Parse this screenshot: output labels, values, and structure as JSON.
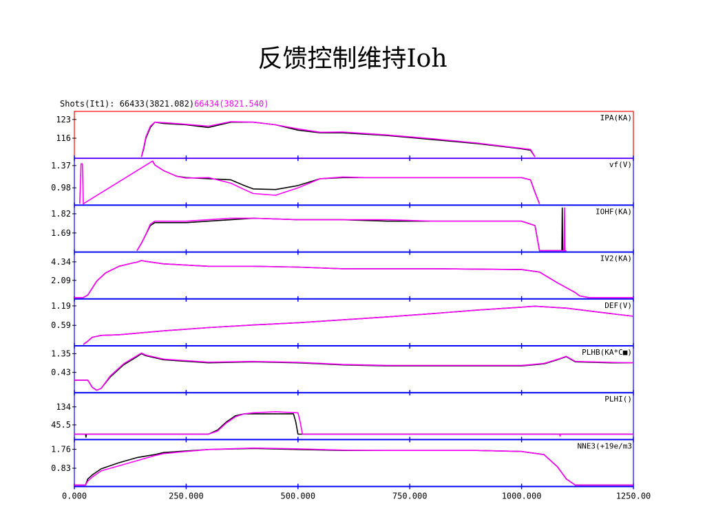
{
  "slide": {
    "title": "反馈控制维持Ioh",
    "shots_label": "Shots(It1): 66433(3821.082)",
    "shots_second": "66434(3821.540)"
  },
  "colors": {
    "shot1": "#000000",
    "shot2": "#ff00ff",
    "frame_first": "#ff0000",
    "frame": "#0000ff",
    "separator_first": "#ff00ff"
  },
  "chart_data": {
    "type": "line",
    "x_ticks": [
      "0.000",
      "250.000",
      "500.000",
      "750.000",
      "1000.000",
      "1250.00"
    ],
    "xlim": [
      0,
      1250
    ],
    "panels": [
      {
        "name": "IPA(KA)",
        "tick_labels": [
          "123",
          "116"
        ],
        "ticks": [
          123,
          116
        ],
        "ylim": [
          109,
          125
        ],
        "series": [
          {
            "x": [
              150,
              155,
              160,
              170,
              180,
              200,
              250,
              300,
              350,
              400,
              450,
              500,
              550,
              600,
              700,
              800,
              900,
              950,
              1000,
              1020,
              1030
            ],
            "y": [
              109,
              112,
              116,
              120,
              122,
              121.5,
              121,
              120,
              122,
              122,
              121,
              119,
              118,
              118,
              117,
              115.5,
              114,
              113,
              112,
              111.5,
              109
            ]
          },
          {
            "x": [
              150,
              155,
              160,
              170,
              180,
              200,
              250,
              300,
              350,
              400,
              450,
              500,
              550,
              600,
              700,
              800,
              900,
              950,
              1000,
              1020,
              1030
            ],
            "y": [
              109,
              112.5,
              116.5,
              120.5,
              122,
              121.8,
              121.2,
              120.5,
              122.2,
              122,
              121,
              119.5,
              118.2,
              118.3,
              117.2,
              115.8,
              114.2,
              113.2,
              112.2,
              111.8,
              109
            ]
          }
        ]
      },
      {
        "name": "vf(V)",
        "tick_labels": [
          "1.37",
          "0.98"
        ],
        "ticks": [
          1.37,
          0.98
        ],
        "ylim": [
          0.7,
          1.45
        ],
        "series": [
          {
            "x": [
              175,
              180,
              200,
              230,
              250,
              300,
              350,
              380,
              400,
              450,
              500,
              550,
              600,
              650,
              700,
              800,
              900,
              1000,
              1020,
              1030,
              1040
            ],
            "y": [
              1.45,
              1.38,
              1.28,
              1.18,
              1.16,
              1.14,
              1.12,
              1.02,
              0.96,
              0.95,
              1.02,
              1.14,
              1.16,
              1.16,
              1.16,
              1.16,
              1.16,
              1.16,
              1.12,
              0.9,
              0.7
            ]
          },
          {
            "x": [
              12,
              15,
              18,
              20,
              175,
              180,
              200,
              230,
              250,
              300,
              350,
              380,
              400,
              450,
              500,
              550,
              600,
              650,
              700,
              800,
              900,
              1000,
              1020,
              1030,
              1040
            ],
            "y": [
              0.7,
              1.4,
              1.4,
              0.7,
              1.45,
              1.38,
              1.28,
              1.18,
              1.15,
              1.16,
              1.06,
              0.95,
              0.88,
              0.85,
              0.98,
              1.14,
              1.17,
              1.16,
              1.16,
              1.16,
              1.16,
              1.16,
              1.12,
              0.9,
              0.7
            ]
          }
        ]
      },
      {
        "name": "IOHF(KA)",
        "tick_labels": [
          "1.82",
          "1.69"
        ],
        "ticks": [
          1.82,
          1.69
        ],
        "ylim": [
          1.57,
          1.86
        ],
        "series": [
          {
            "x": [
              140,
              150,
              160,
              170,
              180,
              250,
              350,
              400,
              500,
              600,
              700,
              800,
              900,
              1000,
              1030,
              1040,
              1060,
              1090,
              1091,
              1092,
              1093,
              1100
            ],
            "y": [
              1.57,
              1.62,
              1.68,
              1.74,
              1.76,
              1.76,
              1.78,
              1.79,
              1.78,
              1.78,
              1.77,
              1.77,
              1.77,
              1.77,
              1.74,
              1.57,
              1.57,
              1.57,
              1.86,
              1.57,
              1.57,
              1.57
            ]
          },
          {
            "x": [
              140,
              150,
              160,
              170,
              180,
              250,
              350,
              400,
              500,
              600,
              700,
              800,
              900,
              1000,
              1030,
              1040,
              1060,
              1095,
              1096,
              1097,
              1100
            ],
            "y": [
              1.57,
              1.62,
              1.68,
              1.75,
              1.77,
              1.77,
              1.79,
              1.79,
              1.78,
              1.78,
              1.78,
              1.77,
              1.77,
              1.77,
              1.74,
              1.57,
              1.57,
              1.57,
              1.86,
              1.57,
              1.57
            ]
          }
        ]
      },
      {
        "name": "IV2(KA)",
        "tick_labels": [
          "4.34",
          "2.09"
        ],
        "ticks": [
          4.34,
          2.09
        ],
        "ylim": [
          0,
          5.2
        ],
        "series": [
          {
            "x": [
              0,
              20,
              30,
              50,
              70,
              100,
              130,
              140,
              150,
              160,
              200,
              300,
              400,
              500,
              600,
              800,
              1000,
              1040,
              1080,
              1100,
              1120,
              1130,
              1150,
              1250
            ],
            "y": [
              0,
              0,
              0.3,
              2,
              3,
              3.8,
              4.2,
              4.3,
              4.5,
              4.4,
              4.1,
              3.8,
              3.8,
              3.7,
              3.5,
              3.5,
              3.4,
              3.1,
              1.8,
              1.2,
              0.6,
              0.2,
              0,
              0
            ]
          },
          {
            "x": [
              0,
              20,
              30,
              50,
              70,
              100,
              130,
              140,
              150,
              160,
              200,
              300,
              400,
              500,
              600,
              800,
              1000,
              1040,
              1080,
              1100,
              1120,
              1130,
              1150,
              1250
            ],
            "y": [
              0,
              0,
              0.3,
              2,
              3,
              3.8,
              4.2,
              4.3,
              4.5,
              4.4,
              4.1,
              3.8,
              3.8,
              3.7,
              3.5,
              3.5,
              3.4,
              3.1,
              1.8,
              1.2,
              0.6,
              0.2,
              0,
              0
            ]
          }
        ]
      },
      {
        "name": "DEF(V)",
        "tick_labels": [
          "1.19",
          "0.59"
        ],
        "ticks": [
          1.19,
          0.59
        ],
        "ylim": [
          0,
          1.32
        ],
        "series": [
          {
            "x": [
              20,
              30,
              40,
              60,
              100,
              200,
              300,
              400,
              500,
              600,
              700,
              800,
              900,
              1000,
              1030,
              1100,
              1200,
              1250
            ],
            "y": [
              0,
              0.1,
              0.22,
              0.28,
              0.3,
              0.42,
              0.52,
              0.6,
              0.67,
              0.76,
              0.85,
              0.95,
              1.06,
              1.15,
              1.18,
              1.12,
              0.95,
              0.87
            ]
          },
          {
            "x": [
              20,
              30,
              40,
              60,
              100,
              200,
              300,
              400,
              500,
              600,
              700,
              800,
              900,
              1000,
              1030,
              1100,
              1200,
              1250
            ],
            "y": [
              0,
              0.1,
              0.22,
              0.28,
              0.3,
              0.42,
              0.52,
              0.6,
              0.67,
              0.76,
              0.85,
              0.95,
              1.06,
              1.15,
              1.18,
              1.12,
              0.95,
              0.87
            ]
          }
        ]
      },
      {
        "name": "PLHB(KA*C■)",
        "tick_labels": [
          "1.35",
          "0.43"
        ],
        "ticks": [
          1.35,
          0.43
        ],
        "ylim": [
          -0.5,
          1.6
        ],
        "series": [
          {
            "x": [
              0,
              30,
              40,
              50,
              60,
              80,
              110,
              140,
              150,
              160,
              200,
              300,
              400,
              500,
              600,
              700,
              800,
              900,
              1000,
              1050,
              1080,
              1100,
              1120,
              1200,
              1250
            ],
            "y": [
              0.05,
              0.05,
              -0.3,
              -0.45,
              -0.35,
              0.2,
              0.8,
              1.2,
              1.35,
              1.25,
              1.05,
              0.9,
              0.95,
              0.9,
              0.8,
              0.75,
              0.75,
              0.75,
              0.75,
              0.85,
              1.05,
              1.2,
              0.95,
              0.9,
              0.9
            ]
          },
          {
            "x": [
              0,
              30,
              40,
              50,
              60,
              80,
              110,
              140,
              150,
              160,
              200,
              300,
              400,
              500,
              600,
              700,
              800,
              900,
              1000,
              1050,
              1080,
              1100,
              1120,
              1200,
              1250
            ],
            "y": [
              0.05,
              0.05,
              -0.3,
              -0.45,
              -0.35,
              0.25,
              0.85,
              1.25,
              1.38,
              1.28,
              1.08,
              0.93,
              0.97,
              0.92,
              0.82,
              0.77,
              0.77,
              0.77,
              0.77,
              0.87,
              1.07,
              1.22,
              0.97,
              0.92,
              0.9
            ]
          }
        ]
      },
      {
        "name": "PLHI()",
        "tick_labels": [
          "134",
          "45.5"
        ],
        "ticks": [
          134,
          45.5
        ],
        "ylim": [
          -20,
          190
        ],
        "series": [
          {
            "x": [
              0,
              25,
              26,
              27,
              28,
              100,
              200,
              300,
              320,
              340,
              360,
              380,
              400,
              450,
              490,
              495,
              500,
              600,
              800,
              1000,
              1250
            ],
            "y": [
              0,
              0,
              -15,
              0,
              0,
              0,
              0,
              0,
              20,
              60,
              90,
              100,
              100,
              100,
              100,
              60,
              0,
              0,
              0,
              0,
              0
            ]
          },
          {
            "x": [
              0,
              100,
              200,
              300,
              320,
              340,
              360,
              380,
              400,
              450,
              500,
              505,
              510,
              600,
              800,
              1000,
              1085,
              1086,
              1087,
              1250
            ],
            "y": [
              0,
              0,
              0,
              0,
              15,
              55,
              85,
              100,
              105,
              110,
              105,
              60,
              0,
              0,
              0,
              0,
              0,
              -10,
              0,
              0
            ]
          }
        ]
      },
      {
        "name": "NNE3(+19e/m3",
        "tick_labels": [
          "1.76",
          "0.83"
        ],
        "ticks": [
          1.76,
          0.83
        ],
        "ylim": [
          0,
          2.1
        ],
        "series": [
          {
            "x": [
              0,
              25,
              30,
              40,
              60,
              100,
              140,
              180,
              200,
              300,
              400,
              500,
              600,
              700,
              800,
              900,
              1000,
              1050,
              1080,
              1100,
              1120,
              1250
            ],
            "y": [
              0,
              0,
              0.3,
              0.5,
              0.8,
              1.1,
              1.35,
              1.5,
              1.6,
              1.75,
              1.8,
              1.75,
              1.7,
              1.7,
              1.7,
              1.7,
              1.65,
              1.5,
              0.9,
              0.3,
              0,
              0
            ]
          },
          {
            "x": [
              0,
              25,
              30,
              40,
              60,
              100,
              140,
              180,
              200,
              300,
              400,
              500,
              600,
              700,
              800,
              900,
              1000,
              1050,
              1080,
              1100,
              1120,
              1250
            ],
            "y": [
              0,
              0,
              0.2,
              0.4,
              0.7,
              0.95,
              1.2,
              1.45,
              1.55,
              1.75,
              1.82,
              1.78,
              1.72,
              1.7,
              1.7,
              1.7,
              1.65,
              1.5,
              0.9,
              0.3,
              0,
              0
            ]
          }
        ]
      }
    ]
  }
}
